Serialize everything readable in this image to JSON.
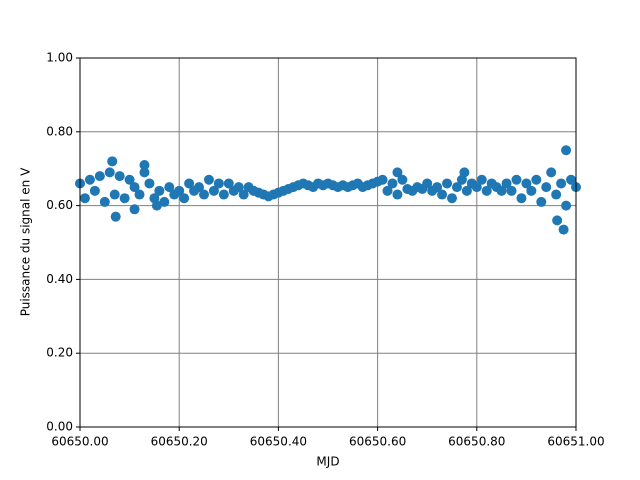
{
  "chart_data": {
    "type": "scatter",
    "x_label": "MJD",
    "y_label": "Puissance du signal en V",
    "color": "#1f77b4",
    "grid": true,
    "grid_color": "#808080",
    "xlim": [
      60650.0,
      60651.0
    ],
    "xticks": [
      {
        "value": 60650.0,
        "label": "60650.00"
      },
      {
        "value": 60650.2,
        "label": "60650.20"
      },
      {
        "value": 60650.4,
        "label": "60650.40"
      },
      {
        "value": 60650.6,
        "label": "60650.60"
      },
      {
        "value": 60650.8,
        "label": "60650.80"
      },
      {
        "value": 60651.0,
        "label": "60651.00"
      }
    ],
    "ylim": [
      0,
      1
    ],
    "yticks": [
      {
        "value": 0,
        "label": "0.00"
      },
      {
        "value": 0.2,
        "label": "0.20"
      },
      {
        "value": 0.4,
        "label": "0.40"
      },
      {
        "value": 0.6,
        "label": "0.60"
      },
      {
        "value": 0.8,
        "label": "0.80"
      },
      {
        "value": 1,
        "label": "1.00"
      }
    ],
    "x": [
      60650.0,
      60650.01,
      60650.02,
      60650.03,
      60650.04,
      60650.05,
      60650.06,
      60650.07,
      60650.08,
      60650.09,
      60650.1,
      60650.11,
      60650.12,
      60650.13,
      60650.14,
      60650.15,
      60650.16,
      60650.17,
      60650.18,
      60650.19,
      60650.2,
      60650.21,
      60650.22,
      60650.23,
      60650.24,
      60650.25,
      60650.26,
      60650.27,
      60650.28,
      60650.29,
      60650.3,
      60650.31,
      60650.32,
      60650.33,
      60650.34,
      60650.35,
      60650.36,
      60650.37,
      60650.38,
      60650.39,
      60650.4,
      60650.41,
      60650.42,
      60650.43,
      60650.44,
      60650.45,
      60650.46,
      60650.47,
      60650.48,
      60650.49,
      60650.5,
      60650.51,
      60650.52,
      60650.53,
      60650.54,
      60650.55,
      60650.56,
      60650.57,
      60650.58,
      60650.59,
      60650.6,
      60650.61,
      60650.62,
      60650.63,
      60650.64,
      60650.65,
      60650.66,
      60650.67,
      60650.68,
      60650.69,
      60650.7,
      60650.71,
      60650.72,
      60650.73,
      60650.74,
      60650.75,
      60650.76,
      60650.77,
      60650.78,
      60650.79,
      60650.8,
      60650.81,
      60650.82,
      60650.83,
      60650.84,
      60650.85,
      60650.86,
      60650.87,
      60650.88,
      60650.89,
      60650.9,
      60650.91,
      60650.92,
      60650.93,
      60650.94,
      60650.95,
      60650.96,
      60650.97,
      60650.98,
      60650.99,
      60651.0,
      60650.065,
      60650.072,
      60650.11,
      60650.975,
      60650.98,
      60650.962,
      60650.775,
      60650.64,
      60650.13,
      60650.155
    ],
    "y": [
      0.66,
      0.62,
      0.67,
      0.64,
      0.68,
      0.61,
      0.69,
      0.63,
      0.68,
      0.62,
      0.67,
      0.65,
      0.63,
      0.69,
      0.66,
      0.62,
      0.64,
      0.61,
      0.65,
      0.63,
      0.64,
      0.62,
      0.66,
      0.64,
      0.65,
      0.63,
      0.67,
      0.64,
      0.66,
      0.63,
      0.66,
      0.64,
      0.65,
      0.63,
      0.65,
      0.64,
      0.635,
      0.63,
      0.625,
      0.63,
      0.635,
      0.64,
      0.645,
      0.65,
      0.655,
      0.66,
      0.655,
      0.65,
      0.66,
      0.655,
      0.66,
      0.655,
      0.65,
      0.655,
      0.65,
      0.655,
      0.66,
      0.65,
      0.655,
      0.66,
      0.665,
      0.67,
      0.64,
      0.66,
      0.63,
      0.67,
      0.645,
      0.64,
      0.65,
      0.645,
      0.66,
      0.64,
      0.65,
      0.63,
      0.66,
      0.62,
      0.65,
      0.67,
      0.64,
      0.66,
      0.65,
      0.67,
      0.64,
      0.66,
      0.65,
      0.64,
      0.66,
      0.64,
      0.67,
      0.62,
      0.66,
      0.64,
      0.67,
      0.61,
      0.65,
      0.69,
      0.63,
      0.66,
      0.6,
      0.67,
      0.65,
      0.72,
      0.57,
      0.59,
      0.535,
      0.75,
      0.56,
      0.69,
      0.69,
      0.71,
      0.6
    ]
  }
}
